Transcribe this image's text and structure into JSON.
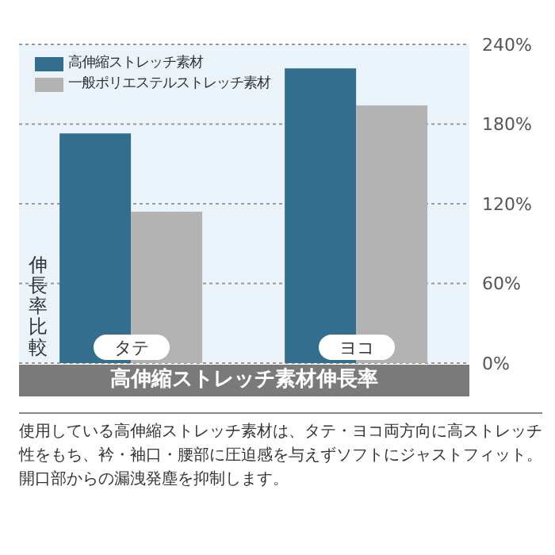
{
  "chart_data": {
    "type": "bar",
    "xlabel": "高伸縮ストレッチ素材伸長率",
    "ylabel": "伸長率比較",
    "categories": [
      "タテ",
      "ヨコ"
    ],
    "series": [
      {
        "name": "高伸縮ストレッチ素材",
        "color": "#336e8f",
        "values": [
          173,
          222
        ]
      },
      {
        "name": "一般ポリエステルストレッチ素材",
        "color": "#b3b3b3",
        "values": [
          114,
          194
        ]
      }
    ],
    "ylim": [
      0,
      240
    ],
    "yticks": [
      {
        "value": 0,
        "label": "0%"
      },
      {
        "value": 60,
        "label": "60%"
      },
      {
        "value": 120,
        "label": "120%"
      },
      {
        "value": 180,
        "label": "180%"
      },
      {
        "value": 240,
        "label": "240%"
      }
    ],
    "grid": "y",
    "legend": "top left",
    "annotations": [
      "使用している高伸縮ストレッチ素材は、タテ・ヨコ両方向に高ストレッチ性をもち、衿・袖口・腰部に圧迫感を与えずソフトにジャストフィット。開口部からの漏洩発塵を抑制します。"
    ]
  }
}
